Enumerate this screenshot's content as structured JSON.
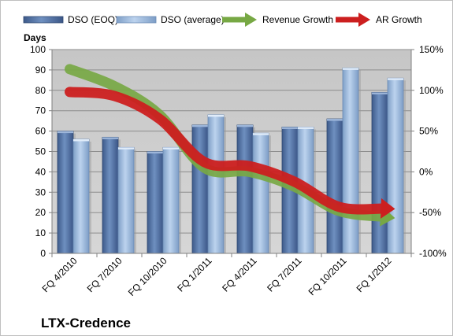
{
  "chart_data": {
    "type": "bar",
    "title": "LTX-Credence",
    "ylabel": "Days",
    "categories": [
      "FQ 4/2010",
      "FQ 7/2010",
      "FQ 10/2010",
      "FQ 1/2011",
      "FQ 4/2011",
      "FQ 7/2011",
      "FQ 10/2011",
      "FQ 1/2012"
    ],
    "ylim": [
      0,
      100
    ],
    "y_ticks": [
      "0",
      "10",
      "20",
      "30",
      "40",
      "50",
      "60",
      "70",
      "80",
      "90",
      "100"
    ],
    "y2lim": [
      -100,
      150
    ],
    "y2_ticks": [
      "-100%",
      "-50%",
      "0%",
      "50%",
      "100%",
      "150%"
    ],
    "series": [
      {
        "name": "DSO (EOQ)",
        "type": "bar",
        "color": "#4f6fa0",
        "values": [
          60,
          57,
          50,
          63,
          63,
          62,
          66,
          79
        ]
      },
      {
        "name": "DSO (average)",
        "type": "bar",
        "color": "#8fb1d6",
        "values": [
          56,
          52,
          52,
          68,
          59,
          62,
          91,
          86
        ]
      },
      {
        "name": "Revenue Growth",
        "type": "line",
        "axis": "right",
        "color": "#77a844",
        "values": [
          126,
          105,
          70,
          5,
          0,
          -18,
          -48,
          -55
        ]
      },
      {
        "name": "AR Growth",
        "type": "line",
        "axis": "right",
        "color": "#cc1f1f",
        "values": [
          98,
          93,
          65,
          12,
          7,
          -12,
          -43,
          -45
        ]
      }
    ],
    "grid": true,
    "legend_position": "top"
  }
}
